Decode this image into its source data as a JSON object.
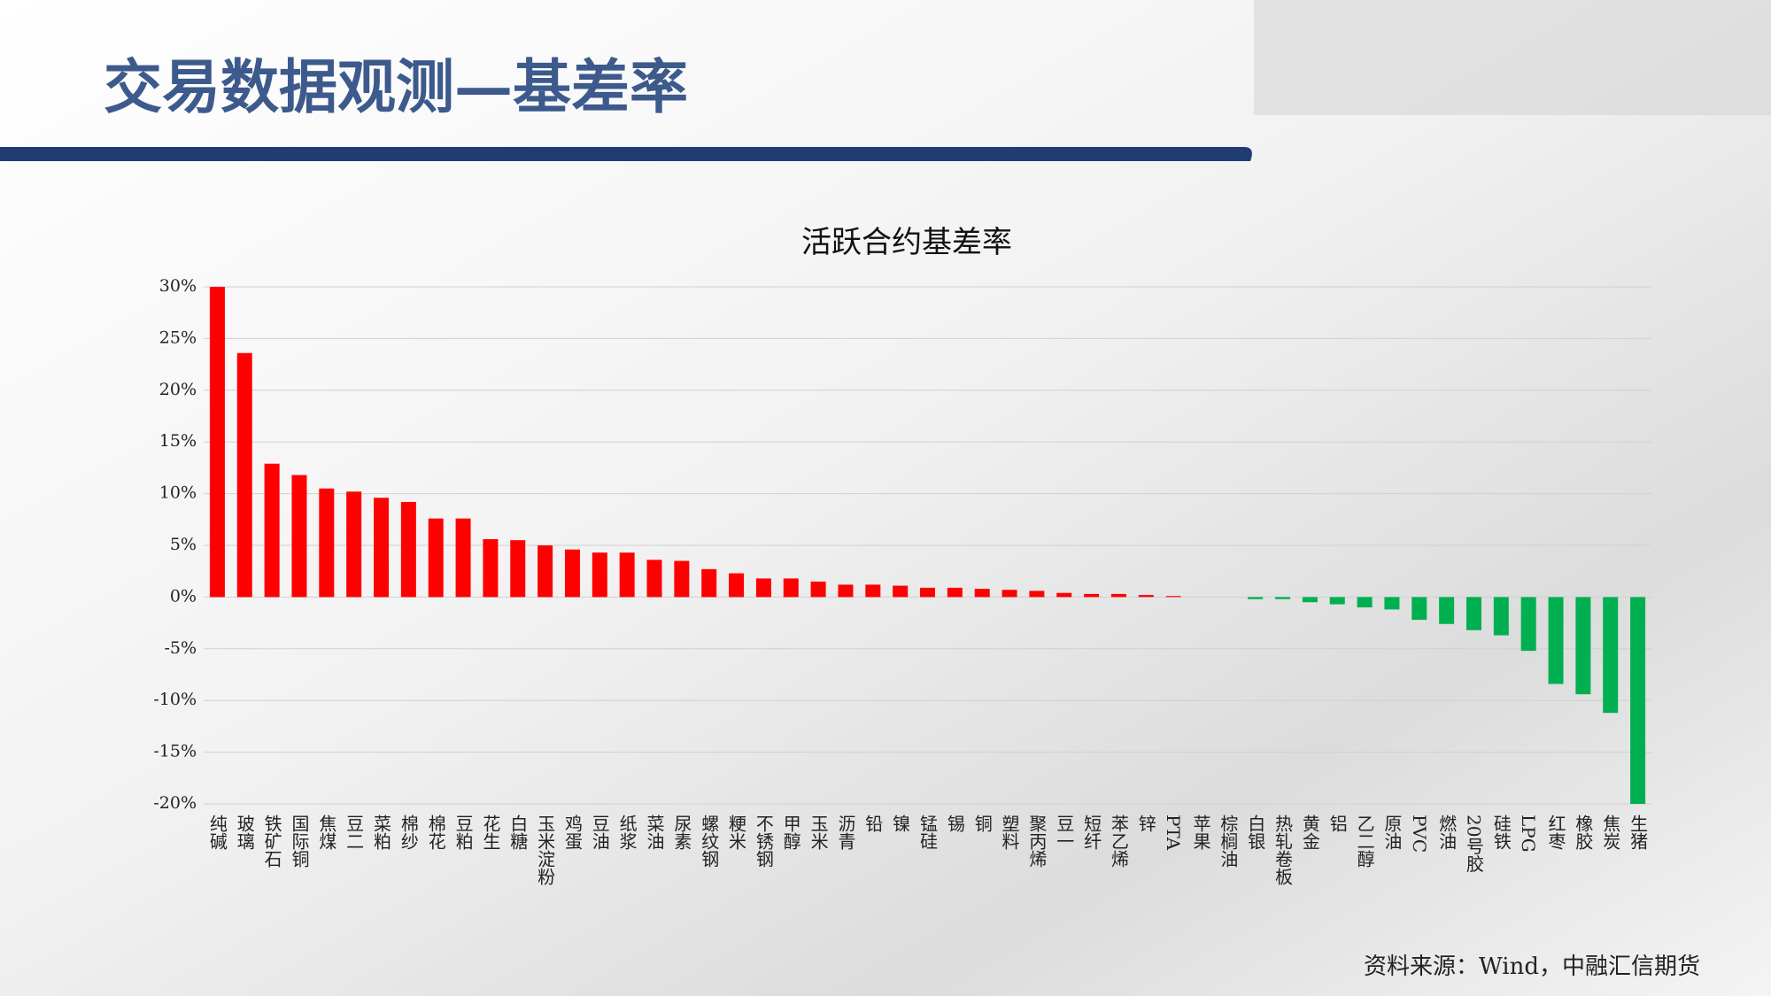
{
  "page_title": "交易数据观测—基差率",
  "source": "资料来源：Wind，中融汇信期货",
  "chart_data": {
    "type": "bar",
    "title": "活跃合约基差率",
    "categories": [
      "纯碱",
      "玻璃",
      "铁矿石",
      "国际铜",
      "焦煤",
      "豆二",
      "菜粕",
      "棉纱",
      "棉花",
      "豆粕",
      "花生",
      "白糖",
      "玉米淀粉",
      "鸡蛋",
      "豆油",
      "纸浆",
      "菜油",
      "尿素",
      "螺纹钢",
      "粳米",
      "不锈钢",
      "甲醇",
      "玉米",
      "沥青",
      "铅",
      "镍",
      "锰硅",
      "锡",
      "铜",
      "塑料",
      "聚丙烯",
      "豆一",
      "短纤",
      "苯乙烯",
      "锌",
      "PTA",
      "苹果",
      "棕榈油",
      "白银",
      "热轧卷板",
      "黄金",
      "铝",
      "乙二醇",
      "原油",
      "PVC",
      "燃油",
      "20号胶",
      "硅铁",
      "LPG",
      "红枣",
      "橡胶",
      "焦炭",
      "生猪"
    ],
    "values": [
      30,
      23.6,
      12.9,
      11.8,
      10.5,
      10.2,
      9.6,
      9.2,
      7.6,
      7.6,
      5.6,
      5.5,
      5.0,
      4.6,
      4.3,
      4.3,
      3.6,
      3.5,
      2.7,
      2.3,
      1.8,
      1.8,
      1.5,
      1.2,
      1.2,
      1.1,
      0.9,
      0.9,
      0.8,
      0.7,
      0.6,
      0.4,
      0.3,
      0.3,
      0.2,
      0.1,
      0,
      0,
      -0.2,
      -0.2,
      -0.5,
      -0.7,
      -1.0,
      -1.2,
      -2.2,
      -2.6,
      -3.2,
      -3.7,
      -5.2,
      -8.4,
      -9.4,
      -11.2,
      -20
    ],
    "color_positive": "#ff0000",
    "color_negative": "#00b050",
    "ylim": [
      -20,
      30
    ],
    "yticks": [
      {
        "value": -20,
        "label": "-20%"
      },
      {
        "value": -15,
        "label": "-15%"
      },
      {
        "value": -10,
        "label": "-10%"
      },
      {
        "value": -5,
        "label": "-5%"
      },
      {
        "value": 0,
        "label": "0%"
      },
      {
        "value": 5,
        "label": "5%"
      },
      {
        "value": 10,
        "label": "10%"
      },
      {
        "value": 15,
        "label": "15%"
      },
      {
        "value": 20,
        "label": "20%"
      },
      {
        "value": 25,
        "label": "25%"
      },
      {
        "value": 30,
        "label": "30%"
      }
    ],
    "grid": true
  }
}
